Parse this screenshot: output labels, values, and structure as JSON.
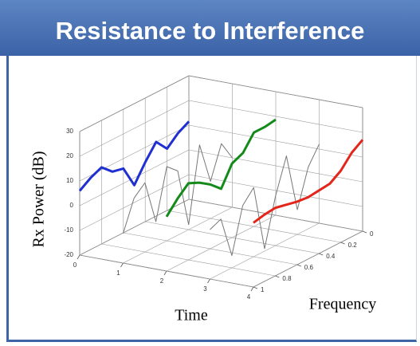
{
  "chart_data": {
    "type": "line3d",
    "title": "Resistance to Interference",
    "zlabel": "Rx Power (dB)",
    "xlabel": "Time",
    "ylabel": "Frequency",
    "xlim": [
      0,
      4
    ],
    "xticks": [
      0,
      1,
      2,
      3,
      4
    ],
    "ylim": [
      0,
      1
    ],
    "yticks": [
      0,
      0.2,
      0.4,
      0.6,
      0.8,
      1
    ],
    "zlim": [
      -20,
      30
    ],
    "zticks": [
      -20,
      -10,
      0,
      10,
      20,
      30
    ],
    "grid": true,
    "frequency": [
      0,
      0.1,
      0.2,
      0.3,
      0.4,
      0.5,
      0.6,
      0.7,
      0.8,
      0.9,
      1
    ],
    "series": [
      {
        "time": 0,
        "color": "#1f2fd0",
        "width": 3,
        "values": [
          11.5,
          9,
          5,
          10,
          4,
          -3,
          6,
          7,
          11,
          9,
          6
        ]
      },
      {
        "time": 1,
        "color": "#777777",
        "width": 1,
        "values": [
          0,
          8,
          -5,
          12,
          -18,
          6,
          10,
          -10,
          8,
          4,
          -8
        ]
      },
      {
        "time": 2,
        "color": "#138a1a",
        "width": 3,
        "values": [
          18.7,
          18,
          18,
          12,
          10,
          2,
          6,
          9,
          11,
          7,
          2
        ]
      },
      {
        "time": 3,
        "color": "#777777",
        "width": 1,
        "values": [
          12,
          5,
          -10,
          14,
          0,
          -19,
          8,
          3,
          -15,
          2,
          0
        ]
      },
      {
        "time": 4,
        "color": "#e3261b",
        "width": 3,
        "values": [
          17,
          14,
          9,
          6,
          5.5,
          5,
          5.5,
          6.5,
          7.5,
          7,
          6
        ]
      }
    ]
  }
}
